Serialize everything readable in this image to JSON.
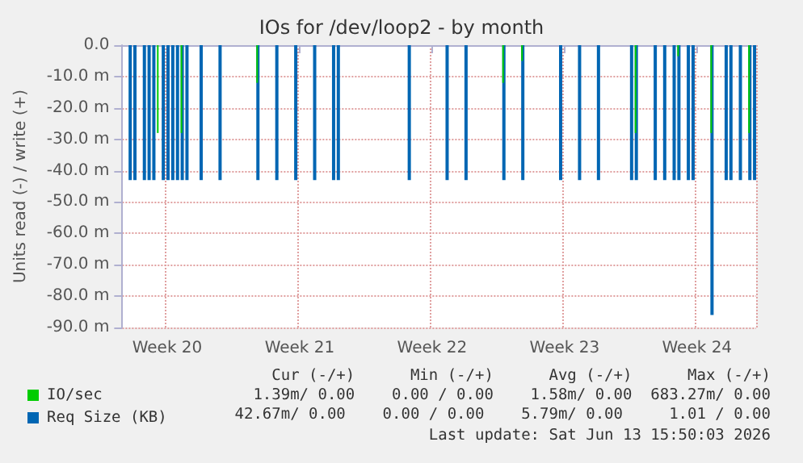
{
  "chart_data": {
    "type": "bar",
    "title": "IOs for /dev/loop2 - by month",
    "ylabel": "Units read (-) / write (+)",
    "categories": [
      null,
      null,
      null,
      null,
      null,
      null,
      null,
      null,
      null,
      "Week 20",
      null,
      null,
      null,
      null,
      null,
      null,
      null,
      null,
      null,
      null,
      null,
      null,
      null,
      null,
      null,
      null,
      null,
      null,
      null,
      null,
      null,
      null,
      null,
      null,
      null,
      null,
      null,
      "Week 21",
      null,
      null,
      null,
      null,
      null,
      null,
      null,
      null,
      null,
      null,
      null,
      null,
      null,
      null,
      null,
      null,
      null,
      null,
      null,
      null,
      null,
      null,
      null,
      null,
      null,
      null,
      null,
      "Week 22",
      null,
      null,
      null,
      null,
      null,
      null,
      null,
      null,
      null,
      null,
      null,
      null,
      null,
      null,
      null,
      null,
      null,
      null,
      null,
      null,
      null,
      null,
      null,
      null,
      null,
      null,
      null,
      "Week 23",
      null,
      null,
      null,
      null,
      null,
      null,
      null,
      null,
      null,
      null,
      null,
      null,
      null,
      null,
      null,
      null,
      null,
      null,
      null,
      null,
      null,
      null,
      null,
      null,
      null,
      null,
      null,
      "Week 24",
      null,
      null,
      null,
      null,
      null,
      null,
      null,
      null,
      null,
      null,
      null,
      null
    ],
    "ylim": [
      -90,
      0
    ],
    "yticks": [
      {
        "value": -90,
        "label": "-90.0 m"
      },
      {
        "value": -80,
        "label": "-80.0 m"
      },
      {
        "value": -70,
        "label": "-70.0 m"
      },
      {
        "value": -60,
        "label": "-60.0 m"
      },
      {
        "value": -50,
        "label": "-50.0 m"
      },
      {
        "value": -40,
        "label": "-40.0 m"
      },
      {
        "value": -30,
        "label": "-30.0 m"
      },
      {
        "value": -20,
        "label": "-20.0 m"
      },
      {
        "value": -10,
        "label": "-10.0 m"
      },
      {
        "value": 0,
        "label": "0.0"
      }
    ],
    "grid": true,
    "legend": "bottom left",
    "series": [
      {
        "name": "Req Size (KB)",
        "color": "#0066b3",
        "values": [
          null,
          -43,
          -43,
          null,
          -43,
          -43,
          -43,
          null,
          -43,
          -43,
          -43,
          -43,
          -43,
          -43,
          null,
          null,
          -43,
          null,
          null,
          null,
          -43,
          null,
          null,
          null,
          null,
          null,
          null,
          null,
          -43,
          null,
          null,
          null,
          -43,
          null,
          null,
          null,
          -43,
          null,
          null,
          null,
          -43,
          null,
          null,
          null,
          -43,
          -43,
          null,
          null,
          null,
          null,
          null,
          null,
          null,
          null,
          null,
          null,
          null,
          null,
          null,
          null,
          -43,
          null,
          null,
          null,
          null,
          null,
          null,
          null,
          -43,
          null,
          null,
          null,
          -43,
          null,
          null,
          null,
          null,
          null,
          null,
          null,
          -43,
          null,
          null,
          null,
          -43,
          null,
          null,
          null,
          null,
          null,
          null,
          null,
          -43,
          null,
          null,
          null,
          -43,
          null,
          null,
          null,
          -43,
          null,
          null,
          null,
          null,
          null,
          null,
          -43,
          -43,
          null,
          null,
          null,
          -43,
          null,
          -43,
          null,
          -43,
          -43,
          null,
          -43,
          -43,
          null,
          null,
          null,
          -86,
          null,
          null,
          -43,
          -43,
          null,
          -43,
          null,
          -43,
          -43
        ]
      },
      {
        "name": "IO/sec",
        "color": "#00cc00",
        "values": [
          null,
          null,
          null,
          null,
          null,
          null,
          null,
          -28,
          null,
          null,
          null,
          null,
          -28,
          null,
          null,
          null,
          null,
          null,
          null,
          null,
          null,
          null,
          null,
          null,
          null,
          null,
          null,
          null,
          -12,
          null,
          null,
          null,
          null,
          null,
          null,
          null,
          null,
          null,
          null,
          null,
          null,
          null,
          null,
          null,
          null,
          null,
          null,
          null,
          null,
          null,
          null,
          null,
          null,
          null,
          null,
          null,
          null,
          null,
          null,
          null,
          null,
          null,
          null,
          null,
          null,
          null,
          null,
          null,
          null,
          null,
          null,
          null,
          null,
          null,
          null,
          null,
          null,
          null,
          null,
          null,
          -12,
          null,
          null,
          null,
          -5,
          null,
          null,
          null,
          null,
          null,
          null,
          null,
          null,
          null,
          null,
          null,
          null,
          null,
          null,
          null,
          null,
          null,
          null,
          null,
          null,
          null,
          null,
          null,
          -28,
          null,
          null,
          null,
          null,
          null,
          null,
          null,
          null,
          -3.5,
          null,
          null,
          null,
          null,
          null,
          null,
          -28,
          null,
          null,
          null,
          null,
          null,
          null,
          null,
          -28,
          null
        ]
      }
    ],
    "annotations": [
      "Cur (-/+)      Min (-/+)      Avg (-/+)      Max (-/+)",
      "1.39m/ 0.00    0.00 / 0.00    1.58m/ 0.00  683.27m/ 0.00",
      "42.67m/ 0.00    0.00 / 0.00    5.79m/ 0.00     1.01 / 0.00",
      "Last update: Sat Jun 13 15:50:03 2026"
    ]
  }
}
